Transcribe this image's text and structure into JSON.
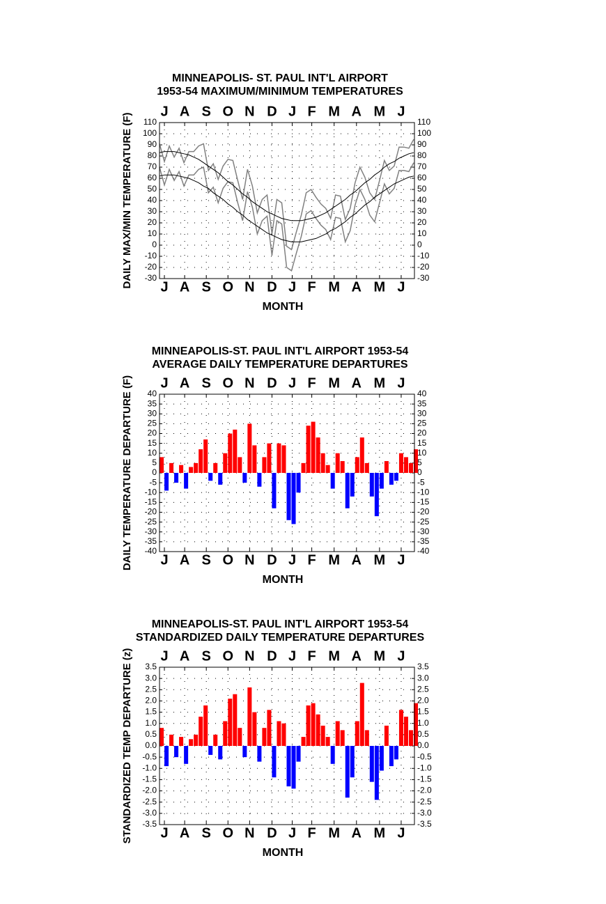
{
  "chart_data": [
    {
      "type": "line",
      "title": "MINNEAPOLIS- ST. PAUL INT'L AIRPORT",
      "subtitle": "1953-54 MAXIMUM/MINIMUM TEMPERATURES",
      "y_label": "DAILY MAX/MIN TEMPERATURE (F)",
      "x_label": "MONTH",
      "xlim": [
        0,
        365
      ],
      "xticks": [
        {
          "value": 7,
          "label": "J"
        },
        {
          "value": 36,
          "label": "A"
        },
        {
          "value": 67,
          "label": "S"
        },
        {
          "value": 98,
          "label": "O"
        },
        {
          "value": 129,
          "label": "N"
        },
        {
          "value": 161,
          "label": "D"
        },
        {
          "value": 190,
          "label": "J"
        },
        {
          "value": 218,
          "label": "F"
        },
        {
          "value": 250,
          "label": "M"
        },
        {
          "value": 282,
          "label": "A"
        },
        {
          "value": 315,
          "label": "M"
        },
        {
          "value": 346,
          "label": "J"
        }
      ],
      "ylim": [
        -30,
        110
      ],
      "yticks": [
        -30,
        -20,
        -10,
        0,
        10,
        20,
        30,
        40,
        50,
        60,
        70,
        80,
        90,
        100,
        110
      ],
      "grid": true,
      "x": [
        0,
        7,
        14,
        21,
        28,
        35,
        42,
        49,
        56,
        63,
        70,
        77,
        84,
        91,
        98,
        105,
        112,
        119,
        126,
        133,
        140,
        147,
        154,
        161,
        168,
        175,
        182,
        189,
        196,
        203,
        210,
        217,
        224,
        231,
        238,
        245,
        252,
        259,
        266,
        273,
        280,
        287,
        294,
        301,
        308,
        315,
        322,
        329,
        336,
        343,
        350,
        357,
        364
      ],
      "series": [
        {
          "color": "#808080",
          "values": [
            91,
            75,
            89,
            79,
            87,
            74,
            84,
            84,
            89,
            91,
            67,
            73,
            59,
            71,
            77,
            76,
            58,
            41,
            68,
            53,
            29,
            41,
            45,
            10,
            41,
            38,
            -1,
            -4,
            12,
            27,
            47,
            50,
            43,
            37,
            33,
            24,
            45,
            44,
            23,
            33,
            56,
            70,
            61,
            47,
            41,
            58,
            76,
            67,
            71,
            88,
            88,
            87,
            95
          ]
        },
        {
          "color": "#808080",
          "values": [
            70,
            54,
            68,
            58,
            66,
            53,
            63,
            63,
            68,
            70,
            47,
            52,
            38,
            51,
            57,
            56,
            38,
            22,
            48,
            34,
            10,
            22,
            26,
            -9,
            22,
            19,
            -20,
            -23,
            -7,
            8,
            28,
            31,
            24,
            18,
            14,
            5,
            25,
            24,
            3,
            13,
            36,
            50,
            41,
            27,
            21,
            38,
            55,
            46,
            51,
            67,
            67,
            66,
            74
          ]
        },
        {
          "color": "#000000",
          "values": [
            83,
            84,
            84,
            84,
            83,
            82,
            81,
            79,
            77,
            74,
            71,
            68,
            65,
            61,
            57,
            54,
            50,
            46,
            43,
            39,
            36,
            33,
            30,
            28,
            26,
            24,
            23,
            22,
            22,
            22,
            23,
            24,
            25,
            27,
            29,
            32,
            35,
            38,
            41,
            45,
            48,
            52,
            56,
            59,
            63,
            66,
            70,
            73,
            75,
            78,
            80,
            82,
            83
          ]
        },
        {
          "color": "#000000",
          "values": [
            62,
            63,
            63,
            63,
            62,
            61,
            60,
            58,
            56,
            53,
            51,
            47,
            44,
            41,
            37,
            34,
            30,
            27,
            23,
            20,
            17,
            14,
            11,
            9,
            7,
            5,
            4,
            3,
            3,
            3,
            4,
            5,
            6,
            8,
            10,
            13,
            15,
            18,
            21,
            25,
            28,
            32,
            36,
            39,
            43,
            46,
            49,
            52,
            55,
            57,
            59,
            61,
            62
          ]
        }
      ]
    },
    {
      "type": "bar",
      "title": "MINNEAPOLIS-ST. PAUL INT'L AIRPORT 1953-54",
      "subtitle": "AVERAGE DAILY TEMPERATURE DEPARTURES",
      "y_label": "DAILY TEMPERATURE DEPARTURE (F)",
      "x_label": "MONTH",
      "xlim": [
        0,
        365
      ],
      "xticks": [
        {
          "value": 7,
          "label": "J"
        },
        {
          "value": 36,
          "label": "A"
        },
        {
          "value": 67,
          "label": "S"
        },
        {
          "value": 98,
          "label": "O"
        },
        {
          "value": 129,
          "label": "N"
        },
        {
          "value": 161,
          "label": "D"
        },
        {
          "value": 190,
          "label": "J"
        },
        {
          "value": 218,
          "label": "F"
        },
        {
          "value": 250,
          "label": "M"
        },
        {
          "value": 282,
          "label": "A"
        },
        {
          "value": 315,
          "label": "M"
        },
        {
          "value": 346,
          "label": "J"
        }
      ],
      "ylim": [
        -40,
        40
      ],
      "yticks": [
        -40,
        -35,
        -30,
        -25,
        -20,
        -15,
        -10,
        -5,
        0,
        5,
        10,
        15,
        20,
        25,
        30,
        35,
        40
      ],
      "grid": true,
      "positive_color": "#ff0000",
      "negative_color": "#0000ff",
      "x": [
        0,
        7,
        14,
        21,
        28,
        35,
        42,
        49,
        56,
        63,
        70,
        77,
        84,
        91,
        98,
        105,
        112,
        119,
        126,
        133,
        140,
        147,
        154,
        161,
        168,
        175,
        182,
        189,
        196,
        203,
        210,
        217,
        224,
        231,
        238,
        245,
        252,
        259,
        266,
        273,
        280,
        287,
        294,
        301,
        308,
        315,
        322,
        329,
        336,
        343,
        350,
        357,
        364
      ],
      "values": [
        8,
        -9,
        5,
        -5,
        4,
        -8,
        3,
        5,
        12,
        17,
        -4,
        5,
        -6,
        10,
        20,
        22,
        8,
        -5,
        25,
        14,
        -7,
        8,
        15,
        -18,
        15,
        14,
        -24,
        -26,
        -10,
        5,
        24,
        26,
        18,
        10,
        4,
        -8,
        10,
        6,
        -18,
        -12,
        8,
        18,
        5,
        -12,
        -22,
        -8,
        6,
        -6,
        -4,
        10,
        8,
        5,
        12
      ]
    },
    {
      "type": "bar",
      "title": "MINNEAPOLIS-ST. PAUL INT'L AIRPORT 1953-54",
      "subtitle": "STANDARDIZED DAILY TEMPERATURE DEPARTURES",
      "y_label": "STANDARDIZED TEMP DEPARTURE (z)",
      "x_label": "MONTH",
      "xlim": [
        0,
        365
      ],
      "xticks": [
        {
          "value": 7,
          "label": "J"
        },
        {
          "value": 36,
          "label": "A"
        },
        {
          "value": 67,
          "label": "S"
        },
        {
          "value": 98,
          "label": "O"
        },
        {
          "value": 129,
          "label": "N"
        },
        {
          "value": 161,
          "label": "D"
        },
        {
          "value": 190,
          "label": "J"
        },
        {
          "value": 218,
          "label": "F"
        },
        {
          "value": 250,
          "label": "M"
        },
        {
          "value": 282,
          "label": "A"
        },
        {
          "value": 315,
          "label": "M"
        },
        {
          "value": 346,
          "label": "J"
        }
      ],
      "ylim": [
        -3.5,
        3.5
      ],
      "yticks": [
        -3.5,
        {
          "value": -3,
          "label": "-3.0"
        },
        -2.5,
        {
          "value": -2,
          "label": "-2.0"
        },
        -1.5,
        {
          "value": -1,
          "label": "-1.0"
        },
        -0.5,
        {
          "value": 0,
          "label": "0.0"
        },
        0.5,
        {
          "value": 1,
          "label": "1.0"
        },
        1.5,
        {
          "value": 2,
          "label": "2.0"
        },
        2.5,
        {
          "value": 3,
          "label": "3.0"
        },
        3.5
      ],
      "grid": true,
      "positive_color": "#ff0000",
      "negative_color": "#0000ff",
      "x": [
        0,
        7,
        14,
        21,
        28,
        35,
        42,
        49,
        56,
        63,
        70,
        77,
        84,
        91,
        98,
        105,
        112,
        119,
        126,
        133,
        140,
        147,
        154,
        161,
        168,
        175,
        182,
        189,
        196,
        203,
        210,
        217,
        224,
        231,
        238,
        245,
        252,
        259,
        266,
        273,
        280,
        287,
        294,
        301,
        308,
        315,
        322,
        329,
        336,
        343,
        350,
        357,
        364
      ],
      "values": [
        0.8,
        -0.9,
        0.5,
        -0.5,
        0.4,
        -0.8,
        0.3,
        0.5,
        1.3,
        1.8,
        -0.4,
        0.5,
        -0.6,
        1.1,
        2.1,
        2.3,
        0.8,
        -0.5,
        2.6,
        1.5,
        -0.7,
        0.8,
        1.6,
        -1.4,
        1.1,
        1.0,
        -1.8,
        -1.9,
        -0.7,
        0.4,
        1.8,
        1.9,
        1.4,
        0.9,
        0.4,
        -0.8,
        1.1,
        0.7,
        -2.3,
        -1.4,
        1.1,
        2.8,
        0.7,
        -1.6,
        -2.4,
        -1.1,
        0.9,
        -0.9,
        -0.6,
        1.6,
        1.3,
        0.7,
        1.9
      ]
    }
  ]
}
